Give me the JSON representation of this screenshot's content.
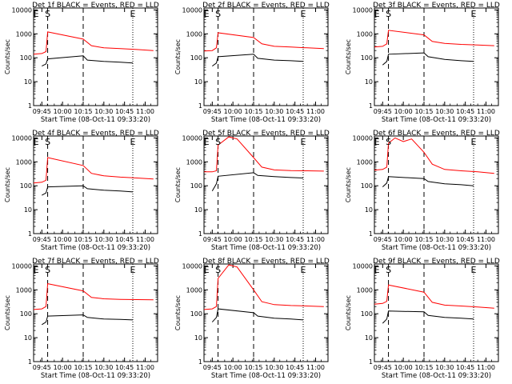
{
  "colors": {
    "events": "#000000",
    "lld": "#ff0000",
    "frame": "#000000",
    "background": "#ffffff"
  },
  "shared": {
    "ylabel": "Counts/sec",
    "xlabel": "Start Time (08-Oct-11 09:33:20)",
    "yticks": [
      1,
      10,
      100,
      1000,
      10000
    ],
    "ytick_labels": [
      "1",
      "10",
      "100",
      "1000",
      "10000"
    ],
    "marker_labels": [
      "E",
      "S",
      "E"
    ],
    "scale": "log"
  },
  "chart_data": [
    {
      "type": "line",
      "title": "Det 1f BLACK = Events, RED = LLD",
      "xlim": [
        9.65,
        11.15
      ],
      "ylim": [
        1,
        12000
      ],
      "xticks": [
        9.75,
        10.0,
        10.25,
        10.5,
        10.75,
        11.0
      ],
      "xtick_labels": [
        "09:45",
        "10:00",
        "10:15",
        "10:30",
        "10:45",
        "11:00"
      ],
      "markers": {
        "E1": 9.68,
        "S": 9.82,
        "E2": 10.85
      },
      "dashed_lines": [
        9.82,
        10.25
      ],
      "dotted_lines": [
        10.85
      ],
      "series": [
        {
          "color": "#ff0000",
          "x": [
            9.65,
            9.75,
            9.8,
            9.82,
            10.25,
            10.35,
            10.5,
            10.7,
            10.9,
            11.1
          ],
          "y": [
            140,
            150,
            180,
            1200,
            600,
            320,
            260,
            240,
            220,
            200
          ]
        },
        {
          "color": "#000000",
          "x": [
            9.75,
            9.8,
            9.82,
            10.25,
            10.3,
            10.5,
            10.7,
            10.85
          ],
          "y": [
            45,
            55,
            90,
            120,
            80,
            70,
            65,
            60
          ]
        }
      ]
    },
    {
      "type": "line",
      "title": "Det 2f BLACK = Events, RED = LLD",
      "xlim": [
        9.65,
        11.15
      ],
      "ylim": [
        1,
        12000
      ],
      "xticks": [
        9.75,
        10.0,
        10.25,
        10.5,
        10.75,
        11.0
      ],
      "xtick_labels": [
        "09:45",
        "10:00",
        "10:15",
        "10:30",
        "10:45",
        "11:00"
      ],
      "markers": {
        "E1": 9.68,
        "S": 9.82,
        "E2": 10.85
      },
      "dashed_lines": [
        9.82,
        10.25
      ],
      "dotted_lines": [
        10.85
      ],
      "series": [
        {
          "color": "#ff0000",
          "x": [
            9.65,
            9.75,
            9.8,
            9.82,
            10.25,
            10.35,
            10.5,
            10.7,
            10.9,
            11.1
          ],
          "y": [
            190,
            200,
            260,
            1100,
            700,
            380,
            300,
            280,
            260,
            240
          ]
        },
        {
          "color": "#000000",
          "x": [
            9.75,
            9.8,
            9.82,
            10.25,
            10.3,
            10.5,
            10.7,
            10.85
          ],
          "y": [
            45,
            60,
            110,
            140,
            95,
            80,
            75,
            70
          ]
        }
      ]
    },
    {
      "type": "line",
      "title": "Det 3f BLACK = Events, RED = LLD",
      "xlim": [
        9.65,
        11.15
      ],
      "ylim": [
        1,
        12000
      ],
      "xticks": [
        9.75,
        10.0,
        10.25,
        10.5,
        10.75,
        11.0
      ],
      "xtick_labels": [
        "09:45",
        "10:00",
        "10:15",
        "10:30",
        "10:45",
        "11:00"
      ],
      "markers": {
        "E1": 9.68,
        "S": 9.82,
        "E2": 10.85
      },
      "dashed_lines": [
        9.82,
        10.25
      ],
      "dotted_lines": [
        10.85
      ],
      "series": [
        {
          "color": "#ff0000",
          "x": [
            9.65,
            9.75,
            9.8,
            9.82,
            10.25,
            10.35,
            10.5,
            10.7,
            10.9,
            11.1
          ],
          "y": [
            280,
            300,
            380,
            1400,
            900,
            480,
            400,
            360,
            340,
            320
          ]
        },
        {
          "color": "#000000",
          "x": [
            9.75,
            9.8,
            9.82,
            10.25,
            10.3,
            10.5,
            10.7,
            10.85
          ],
          "y": [
            50,
            70,
            140,
            160,
            110,
            85,
            75,
            70
          ]
        }
      ]
    },
    {
      "type": "line",
      "title": "Det 4f BLACK = Events, RED = LLD",
      "xlim": [
        9.65,
        11.15
      ],
      "ylim": [
        1,
        12000
      ],
      "xticks": [
        9.75,
        10.0,
        10.25,
        10.5,
        10.75,
        11.0
      ],
      "xtick_labels": [
        "09:45",
        "10:00",
        "10:15",
        "10:30",
        "10:45",
        "11:00"
      ],
      "markers": {
        "E1": 9.68,
        "S": 9.82,
        "E2": 10.85
      },
      "dashed_lines": [
        9.82,
        10.25
      ],
      "dotted_lines": [
        10.85
      ],
      "series": [
        {
          "color": "#ff0000",
          "x": [
            9.65,
            9.75,
            9.8,
            9.82,
            10.25,
            10.35,
            10.5,
            10.7,
            10.9,
            11.1
          ],
          "y": [
            130,
            140,
            170,
            1500,
            700,
            330,
            260,
            230,
            210,
            190
          ]
        },
        {
          "color": "#000000",
          "x": [
            9.75,
            9.8,
            9.82,
            10.25,
            10.3,
            10.5,
            10.7,
            10.85
          ],
          "y": [
            40,
            50,
            90,
            100,
            75,
            65,
            60,
            55
          ]
        }
      ]
    },
    {
      "type": "line",
      "title": "Det 5f BLACK = Events, RED = LLD",
      "xlim": [
        9.65,
        11.15
      ],
      "ylim": [
        1,
        12000
      ],
      "xticks": [
        9.75,
        10.0,
        10.25,
        10.5,
        10.75,
        11.0
      ],
      "xtick_labels": [
        "09:45",
        "10:00",
        "10:15",
        "10:30",
        "10:45",
        "11:00"
      ],
      "markers": {
        "E1": 9.68,
        "S": 9.82,
        "E2": 10.85
      },
      "dashed_lines": [
        9.82,
        10.25
      ],
      "dotted_lines": [
        10.85
      ],
      "series": [
        {
          "color": "#ff0000",
          "x": [
            9.65,
            9.75,
            9.8,
            9.82,
            9.95,
            10.05,
            10.25,
            10.35,
            10.5,
            10.7,
            10.9,
            11.1
          ],
          "y": [
            380,
            380,
            420,
            5000,
            11000,
            9000,
            1500,
            600,
            460,
            430,
            420,
            410
          ]
        },
        {
          "color": "#000000",
          "x": [
            9.75,
            9.8,
            9.82,
            10.25,
            10.3,
            10.5,
            10.7,
            10.85
          ],
          "y": [
            60,
            120,
            250,
            350,
            270,
            240,
            220,
            210
          ]
        }
      ]
    },
    {
      "type": "line",
      "title": "Det 6f BLACK = Events, RED = LLD",
      "xlim": [
        9.65,
        11.15
      ],
      "ylim": [
        1,
        12000
      ],
      "xticks": [
        9.75,
        10.0,
        10.25,
        10.5,
        10.75,
        11.0
      ],
      "xtick_labels": [
        "09:45",
        "10:00",
        "10:15",
        "10:30",
        "10:45",
        "11:00"
      ],
      "markers": {
        "E1": 9.68,
        "S": 9.82,
        "E2": 10.85
      },
      "dashed_lines": [
        9.82,
        10.25
      ],
      "dotted_lines": [
        10.85
      ],
      "series": [
        {
          "color": "#ff0000",
          "x": [
            9.65,
            9.75,
            9.8,
            9.82,
            9.9,
            10.0,
            10.1,
            10.25,
            10.35,
            10.5,
            10.7,
            10.9,
            11.1
          ],
          "y": [
            450,
            480,
            600,
            6000,
            10000,
            7000,
            9000,
            2500,
            800,
            480,
            420,
            380,
            330
          ]
        },
        {
          "color": "#000000",
          "x": [
            9.75,
            9.8,
            9.82,
            10.25,
            10.3,
            10.5,
            10.7,
            10.85
          ],
          "y": [
            90,
            130,
            240,
            200,
            150,
            120,
            110,
            100
          ]
        }
      ]
    },
    {
      "type": "line",
      "title": "Det 7f BLACK = Events, RED = LLD",
      "xlim": [
        9.65,
        11.15
      ],
      "ylim": [
        1,
        12000
      ],
      "xticks": [
        9.75,
        10.0,
        10.25,
        10.5,
        10.75,
        11.0
      ],
      "xtick_labels": [
        "09:45",
        "10:00",
        "10:15",
        "10:30",
        "10:45",
        "11:00"
      ],
      "markers": {
        "E1": 9.68,
        "S": 9.82,
        "E2": 10.85
      },
      "dashed_lines": [
        9.82,
        10.25
      ],
      "dotted_lines": [
        10.85
      ],
      "series": [
        {
          "color": "#ff0000",
          "x": [
            9.65,
            9.75,
            9.8,
            9.82,
            10.25,
            10.35,
            10.5,
            10.7,
            10.9,
            11.1
          ],
          "y": [
            150,
            160,
            200,
            1800,
            900,
            480,
            420,
            400,
            390,
            380
          ]
        },
        {
          "color": "#000000",
          "x": [
            9.75,
            9.8,
            9.82,
            10.25,
            10.3,
            10.5,
            10.7,
            10.85
          ],
          "y": [
            35,
            45,
            80,
            90,
            70,
            60,
            58,
            55
          ]
        }
      ]
    },
    {
      "type": "line",
      "title": "Det 8f BLACK = Events, RED = LLD",
      "xlim": [
        9.65,
        11.15
      ],
      "ylim": [
        1,
        12000
      ],
      "xticks": [
        9.75,
        10.0,
        10.25,
        10.5,
        10.75,
        11.0
      ],
      "xtick_labels": [
        "09:45",
        "10:00",
        "10:15",
        "10:30",
        "10:45",
        "11:00"
      ],
      "markers": {
        "E1": 9.68,
        "S": 9.82,
        "E2": 10.85
      },
      "dashed_lines": [
        9.82,
        10.25
      ],
      "dotted_lines": [
        10.85
      ],
      "series": [
        {
          "color": "#ff0000",
          "x": [
            9.65,
            9.75,
            9.8,
            9.82,
            9.95,
            10.05,
            10.25,
            10.35,
            10.5,
            10.7,
            10.9,
            11.1
          ],
          "y": [
            150,
            160,
            200,
            3000,
            11000,
            9000,
            1000,
            320,
            240,
            220,
            210,
            200
          ]
        },
        {
          "color": "#000000",
          "x": [
            9.75,
            9.8,
            9.82,
            10.25,
            10.3,
            10.5,
            10.7,
            10.85
          ],
          "y": [
            45,
            70,
            160,
            110,
            80,
            65,
            60,
            55
          ]
        }
      ]
    },
    {
      "type": "line",
      "title": "Det 9f BLACK = Events, RED = LLD",
      "xlim": [
        9.65,
        11.15
      ],
      "ylim": [
        1,
        12000
      ],
      "xticks": [
        9.75,
        10.0,
        10.25,
        10.5,
        10.75,
        11.0
      ],
      "xtick_labels": [
        "09:45",
        "10:00",
        "10:15",
        "10:30",
        "10:45",
        "11:00"
      ],
      "markers": {
        "E1": 9.68,
        "S": 9.82,
        "E2": 10.85
      },
      "dashed_lines": [
        9.82,
        10.25
      ],
      "dotted_lines": [
        10.85
      ],
      "series": [
        {
          "color": "#ff0000",
          "x": [
            9.65,
            9.75,
            9.8,
            9.82,
            10.25,
            10.35,
            10.5,
            10.7,
            10.9,
            11.1
          ],
          "y": [
            250,
            270,
            330,
            1600,
            800,
            300,
            230,
            210,
            190,
            170
          ]
        },
        {
          "color": "#000000",
          "x": [
            9.75,
            9.8,
            9.82,
            10.25,
            10.3,
            10.5,
            10.7,
            10.85
          ],
          "y": [
            40,
            60,
            130,
            120,
            85,
            70,
            65,
            60
          ]
        }
      ]
    }
  ]
}
